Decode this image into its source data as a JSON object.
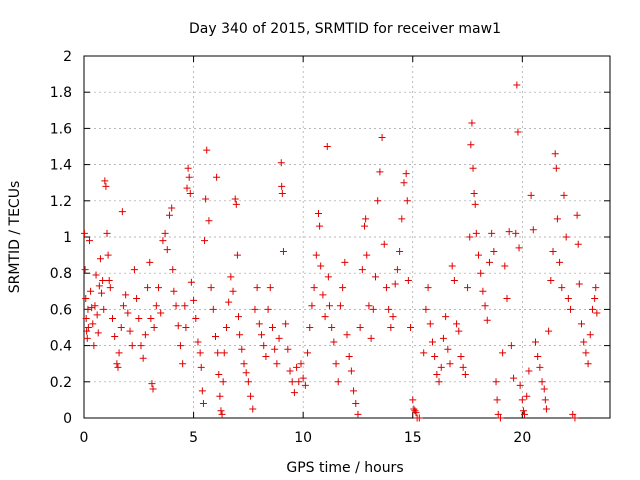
{
  "chart_data": {
    "type": "scatter",
    "title": "Day 340 of 2015, SRMTID for receiver maw1",
    "xlabel": "GPS time / hours",
    "ylabel": "SRMTID / TECUs",
    "xlim": [
      0,
      24
    ],
    "ylim": [
      0,
      2
    ],
    "xticks": [
      0,
      5,
      10,
      15,
      20
    ],
    "xtick_labels": [
      "0",
      "5",
      "10",
      "15",
      "20"
    ],
    "yticks": [
      0,
      0.2,
      0.4,
      0.6,
      0.8,
      1,
      1.2,
      1.4,
      1.6,
      1.8,
      2
    ],
    "ytick_labels": [
      "0",
      "0.2",
      "0.4",
      "0.6",
      "0.8",
      "1",
      "1.2",
      "1.4",
      "1.6",
      "1.8",
      "2"
    ],
    "grid": true,
    "marker": "+",
    "color": "#e00000",
    "series": [
      {
        "name": "SRMTID",
        "points": [
          [
            0.02,
            1.02
          ],
          [
            0.05,
            0.82
          ],
          [
            0.08,
            0.66
          ],
          [
            0.1,
            0.55
          ],
          [
            0.12,
            0.48
          ],
          [
            0.15,
            0.44
          ],
          [
            0.18,
            0.6
          ],
          [
            0.2,
            0.5
          ],
          [
            0.25,
            0.98
          ],
          [
            0.3,
            0.7
          ],
          [
            0.35,
            0.61
          ],
          [
            0.4,
            0.52
          ],
          [
            0.45,
            0.4
          ],
          [
            0.5,
            0.62
          ],
          [
            0.55,
            0.79
          ],
          [
            0.6,
            0.57
          ],
          [
            0.65,
            0.47
          ],
          [
            0.7,
            0.73
          ],
          [
            0.75,
            0.88
          ],
          [
            0.8,
            0.69
          ],
          [
            0.85,
            0.76
          ],
          [
            0.9,
            0.6
          ],
          [
            0.95,
            1.31
          ],
          [
            1.0,
            1.28
          ],
          [
            1.05,
            1.02
          ],
          [
            1.1,
            0.9
          ],
          [
            1.15,
            0.76
          ],
          [
            1.2,
            0.72
          ],
          [
            1.3,
            0.55
          ],
          [
            1.4,
            0.45
          ],
          [
            1.5,
            0.3
          ],
          [
            1.55,
            0.28
          ],
          [
            1.6,
            0.36
          ],
          [
            1.7,
            0.5
          ],
          [
            1.75,
            1.14
          ],
          [
            1.8,
            0.62
          ],
          [
            1.9,
            0.68
          ],
          [
            2.0,
            0.58
          ],
          [
            2.1,
            0.48
          ],
          [
            2.2,
            0.4
          ],
          [
            2.3,
            0.82
          ],
          [
            2.4,
            0.66
          ],
          [
            2.5,
            0.55
          ],
          [
            2.6,
            0.4
          ],
          [
            2.7,
            0.33
          ],
          [
            2.8,
            0.46
          ],
          [
            2.9,
            0.72
          ],
          [
            3.0,
            0.86
          ],
          [
            3.05,
            0.55
          ],
          [
            3.1,
            0.19
          ],
          [
            3.15,
            0.16
          ],
          [
            3.2,
            0.5
          ],
          [
            3.3,
            0.62
          ],
          [
            3.4,
            0.72
          ],
          [
            3.5,
            0.58
          ],
          [
            3.6,
            0.98
          ],
          [
            3.7,
            1.02
          ],
          [
            3.8,
            0.93
          ],
          [
            3.9,
            1.12
          ],
          [
            4.0,
            1.16
          ],
          [
            4.05,
            0.82
          ],
          [
            4.1,
            0.7
          ],
          [
            4.2,
            0.62
          ],
          [
            4.3,
            0.51
          ],
          [
            4.4,
            0.4
          ],
          [
            4.5,
            0.3
          ],
          [
            4.6,
            0.62
          ],
          [
            4.65,
            0.5
          ],
          [
            4.7,
            1.27
          ],
          [
            4.75,
            1.38
          ],
          [
            4.8,
            1.33
          ],
          [
            4.85,
            1.24
          ],
          [
            4.9,
            0.75
          ],
          [
            5.0,
            0.65
          ],
          [
            5.1,
            0.55
          ],
          [
            5.2,
            0.42
          ],
          [
            5.3,
            0.36
          ],
          [
            5.35,
            0.28
          ],
          [
            5.4,
            0.15
          ],
          [
            5.45,
            0.08
          ],
          [
            5.5,
            0.98
          ],
          [
            5.55,
            1.21
          ],
          [
            5.6,
            1.48
          ],
          [
            5.7,
            1.09
          ],
          [
            5.8,
            0.72
          ],
          [
            5.9,
            0.6
          ],
          [
            6.0,
            0.45
          ],
          [
            6.05,
            1.33
          ],
          [
            6.1,
            0.36
          ],
          [
            6.15,
            0.24
          ],
          [
            6.2,
            0.12
          ],
          [
            6.25,
            0.04
          ],
          [
            6.3,
            0.02
          ],
          [
            6.35,
            0.2
          ],
          [
            6.4,
            0.36
          ],
          [
            6.5,
            0.5
          ],
          [
            6.6,
            0.64
          ],
          [
            6.7,
            0.78
          ],
          [
            6.8,
            0.7
          ],
          [
            6.9,
            1.21
          ],
          [
            6.95,
            1.18
          ],
          [
            7.0,
            0.9
          ],
          [
            7.05,
            0.56
          ],
          [
            7.1,
            0.46
          ],
          [
            7.2,
            0.38
          ],
          [
            7.3,
            0.3
          ],
          [
            7.4,
            0.25
          ],
          [
            7.5,
            0.2
          ],
          [
            7.6,
            0.12
          ],
          [
            7.7,
            0.05
          ],
          [
            7.8,
            0.6
          ],
          [
            7.9,
            0.72
          ],
          [
            8.0,
            0.52
          ],
          [
            8.1,
            0.46
          ],
          [
            8.2,
            0.4
          ],
          [
            8.3,
            0.34
          ],
          [
            8.4,
            0.6
          ],
          [
            8.5,
            0.72
          ],
          [
            8.6,
            0.5
          ],
          [
            8.7,
            0.38
          ],
          [
            8.8,
            0.3
          ],
          [
            8.9,
            0.44
          ],
          [
            9.0,
            1.41
          ],
          [
            9.02,
            1.28
          ],
          [
            9.05,
            1.24
          ],
          [
            9.1,
            0.92
          ],
          [
            9.2,
            0.52
          ],
          [
            9.3,
            0.38
          ],
          [
            9.4,
            0.26
          ],
          [
            9.5,
            0.2
          ],
          [
            9.6,
            0.14
          ],
          [
            9.7,
            0.28
          ],
          [
            9.8,
            0.2
          ],
          [
            9.9,
            0.3
          ],
          [
            10.0,
            0.22
          ],
          [
            10.1,
            0.18
          ],
          [
            10.2,
            0.36
          ],
          [
            10.3,
            0.5
          ],
          [
            10.4,
            0.62
          ],
          [
            10.5,
            0.72
          ],
          [
            10.6,
            0.9
          ],
          [
            10.7,
            1.13
          ],
          [
            10.75,
            1.06
          ],
          [
            10.8,
            0.84
          ],
          [
            10.9,
            0.68
          ],
          [
            11.0,
            0.56
          ],
          [
            11.1,
            1.5
          ],
          [
            11.15,
            0.78
          ],
          [
            11.2,
            0.62
          ],
          [
            11.3,
            0.5
          ],
          [
            11.4,
            0.42
          ],
          [
            11.5,
            0.3
          ],
          [
            11.6,
            0.2
          ],
          [
            11.7,
            0.62
          ],
          [
            11.8,
            0.72
          ],
          [
            11.9,
            0.86
          ],
          [
            12.0,
            0.46
          ],
          [
            12.1,
            0.34
          ],
          [
            12.2,
            0.26
          ],
          [
            12.3,
            0.15
          ],
          [
            12.4,
            0.08
          ],
          [
            12.5,
            0.02
          ],
          [
            12.6,
            0.5
          ],
          [
            12.7,
            0.82
          ],
          [
            12.8,
            1.06
          ],
          [
            12.85,
            1.1
          ],
          [
            12.9,
            0.9
          ],
          [
            13.0,
            0.62
          ],
          [
            13.1,
            0.44
          ],
          [
            13.2,
            0.6
          ],
          [
            13.3,
            0.78
          ],
          [
            13.4,
            1.2
          ],
          [
            13.5,
            1.36
          ],
          [
            13.6,
            1.55
          ],
          [
            13.7,
            0.96
          ],
          [
            13.8,
            0.72
          ],
          [
            13.9,
            0.6
          ],
          [
            14.0,
            0.5
          ],
          [
            14.1,
            0.56
          ],
          [
            14.2,
            0.74
          ],
          [
            14.3,
            0.82
          ],
          [
            14.4,
            0.92
          ],
          [
            14.5,
            1.1
          ],
          [
            14.6,
            1.3
          ],
          [
            14.7,
            1.35
          ],
          [
            14.75,
            1.2
          ],
          [
            14.8,
            0.76
          ],
          [
            14.9,
            0.5
          ],
          [
            15.0,
            0.1
          ],
          [
            15.05,
            0.05
          ],
          [
            15.1,
            0.04
          ],
          [
            15.15,
            0.03
          ],
          [
            15.2,
            0.0
          ],
          [
            15.3,
            0.0
          ],
          [
            15.5,
            0.36
          ],
          [
            15.6,
            0.6
          ],
          [
            15.7,
            0.72
          ],
          [
            15.8,
            0.52
          ],
          [
            15.9,
            0.42
          ],
          [
            16.0,
            0.34
          ],
          [
            16.1,
            0.24
          ],
          [
            16.2,
            0.2
          ],
          [
            16.3,
            0.28
          ],
          [
            16.4,
            0.44
          ],
          [
            16.5,
            0.56
          ],
          [
            16.6,
            0.38
          ],
          [
            16.7,
            0.3
          ],
          [
            16.8,
            0.84
          ],
          [
            16.9,
            0.76
          ],
          [
            17.0,
            0.52
          ],
          [
            17.1,
            0.48
          ],
          [
            17.2,
            0.34
          ],
          [
            17.3,
            0.28
          ],
          [
            17.4,
            0.24
          ],
          [
            17.5,
            0.72
          ],
          [
            17.6,
            1.0
          ],
          [
            17.65,
            1.51
          ],
          [
            17.7,
            1.63
          ],
          [
            17.75,
            1.38
          ],
          [
            17.8,
            1.24
          ],
          [
            17.85,
            1.18
          ],
          [
            17.9,
            1.02
          ],
          [
            18.0,
            0.9
          ],
          [
            18.1,
            0.8
          ],
          [
            18.2,
            0.7
          ],
          [
            18.3,
            0.62
          ],
          [
            18.4,
            0.54
          ],
          [
            18.5,
            0.86
          ],
          [
            18.6,
            1.02
          ],
          [
            18.7,
            0.92
          ],
          [
            18.8,
            0.2
          ],
          [
            18.85,
            0.1
          ],
          [
            18.9,
            0.02
          ],
          [
            19.0,
            0.0
          ],
          [
            19.1,
            0.36
          ],
          [
            19.2,
            0.84
          ],
          [
            19.3,
            0.66
          ],
          [
            19.4,
            1.03
          ],
          [
            19.5,
            0.4
          ],
          [
            19.6,
            0.22
          ],
          [
            19.7,
            1.02
          ],
          [
            19.75,
            1.84
          ],
          [
            19.8,
            1.58
          ],
          [
            19.85,
            0.94
          ],
          [
            19.9,
            0.18
          ],
          [
            20.0,
            0.1
          ],
          [
            20.05,
            0.04
          ],
          [
            20.1,
            0.02
          ],
          [
            20.2,
            0.12
          ],
          [
            20.3,
            0.26
          ],
          [
            20.4,
            1.23
          ],
          [
            20.5,
            1.04
          ],
          [
            20.6,
            0.42
          ],
          [
            20.7,
            0.34
          ],
          [
            20.8,
            0.28
          ],
          [
            20.9,
            0.2
          ],
          [
            21.0,
            0.16
          ],
          [
            21.05,
            0.1
          ],
          [
            21.1,
            0.05
          ],
          [
            21.2,
            0.48
          ],
          [
            21.3,
            0.76
          ],
          [
            21.4,
            0.92
          ],
          [
            21.5,
            1.46
          ],
          [
            21.55,
            1.38
          ],
          [
            21.6,
            1.1
          ],
          [
            21.7,
            0.86
          ],
          [
            21.8,
            0.72
          ],
          [
            21.9,
            1.23
          ],
          [
            22.0,
            1.0
          ],
          [
            22.1,
            0.66
          ],
          [
            22.2,
            0.6
          ],
          [
            22.3,
            0.02
          ],
          [
            22.4,
            0.0
          ],
          [
            22.5,
            1.12
          ],
          [
            22.55,
            0.96
          ],
          [
            22.6,
            0.74
          ],
          [
            22.7,
            0.52
          ],
          [
            22.8,
            0.42
          ],
          [
            22.9,
            0.36
          ],
          [
            23.0,
            0.3
          ],
          [
            23.1,
            0.46
          ],
          [
            23.2,
            0.6
          ],
          [
            23.3,
            0.66
          ],
          [
            23.35,
            0.72
          ],
          [
            23.4,
            0.58
          ]
        ]
      }
    ]
  }
}
